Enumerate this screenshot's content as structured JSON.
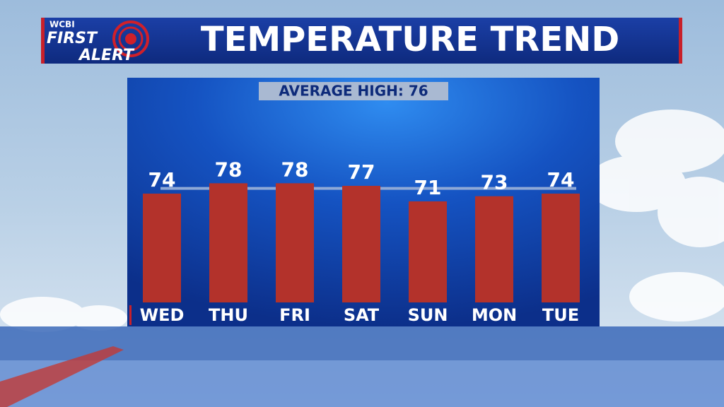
{
  "logo": {
    "station": "WCBI",
    "line1": "FIRST",
    "line2": "ALERT"
  },
  "chart_data": {
    "type": "bar",
    "title": "TEMPERATURE TREND",
    "categories": [
      "WED",
      "THU",
      "FRI",
      "SAT",
      "SUN",
      "MON",
      "TUE"
    ],
    "values": [
      74,
      78,
      78,
      77,
      71,
      73,
      74
    ],
    "color": "#b3322b",
    "ylim": [
      32,
      80
    ],
    "reference_line": {
      "label": "AVERAGE HIGH: 76",
      "value": 76,
      "color": "#8fa9d6"
    }
  }
}
